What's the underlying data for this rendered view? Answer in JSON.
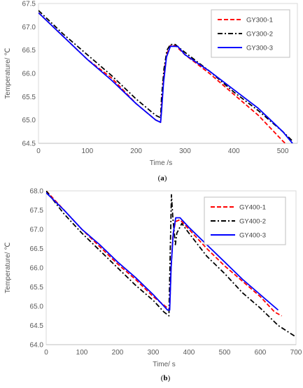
{
  "chart_data": [
    {
      "type": "line",
      "caption_letter": "a",
      "xlabel": "Time /s",
      "ylabel": "Temperature/ ℃",
      "xlim": [
        0,
        530
      ],
      "ylim": [
        64.5,
        67.5
      ],
      "xticks": [
        "0",
        "100",
        "200",
        "300",
        "400",
        "500"
      ],
      "yticks": [
        "64.5",
        "65.0",
        "65.5",
        "66.0",
        "66.5",
        "67.0",
        "67.5"
      ],
      "legend_position": "top-right",
      "series": [
        {
          "name": "GY300-1",
          "color": "#ff0000",
          "dash": "dashed",
          "points": [
            [
              0,
              67.3
            ],
            [
              50,
              66.8
            ],
            [
              100,
              66.3
            ],
            [
              150,
              65.9
            ],
            [
              200,
              65.35
            ],
            [
              240,
              65.0
            ],
            [
              250,
              64.95
            ],
            [
              252,
              65.3
            ],
            [
              256,
              65.9
            ],
            [
              262,
              66.4
            ],
            [
              270,
              66.6
            ],
            [
              280,
              66.6
            ],
            [
              300,
              66.4
            ],
            [
              350,
              66.0
            ],
            [
              400,
              65.55
            ],
            [
              450,
              65.1
            ],
            [
              500,
              64.55
            ],
            [
              510,
              64.45
            ]
          ]
        },
        {
          "name": "GY300-2",
          "color": "#000000",
          "dash": "dashdot",
          "points": [
            [
              0,
              67.35
            ],
            [
              50,
              66.85
            ],
            [
              100,
              66.4
            ],
            [
              150,
              65.95
            ],
            [
              200,
              65.45
            ],
            [
              240,
              65.1
            ],
            [
              250,
              65.05
            ],
            [
              252,
              65.5
            ],
            [
              257,
              66.1
            ],
            [
              263,
              66.5
            ],
            [
              270,
              66.62
            ],
            [
              280,
              66.62
            ],
            [
              300,
              66.45
            ],
            [
              350,
              66.05
            ],
            [
              400,
              65.6
            ],
            [
              450,
              65.2
            ],
            [
              500,
              64.75
            ],
            [
              520,
              64.55
            ]
          ]
        },
        {
          "name": "GY300-3",
          "color": "#0000ff",
          "dash": "solid",
          "points": [
            [
              0,
              67.3
            ],
            [
              50,
              66.8
            ],
            [
              100,
              66.3
            ],
            [
              150,
              65.85
            ],
            [
              200,
              65.35
            ],
            [
              240,
              65.0
            ],
            [
              250,
              64.95
            ],
            [
              252,
              65.2
            ],
            [
              256,
              65.8
            ],
            [
              262,
              66.35
            ],
            [
              270,
              66.58
            ],
            [
              285,
              66.58
            ],
            [
              300,
              66.4
            ],
            [
              350,
              66.05
            ],
            [
              400,
              65.65
            ],
            [
              450,
              65.25
            ],
            [
              500,
              64.75
            ],
            [
              520,
              64.5
            ]
          ]
        }
      ]
    },
    {
      "type": "line",
      "caption_letter": "b",
      "xlabel": "Time/ s",
      "ylabel": "Temperature/ ℃",
      "xlim": [
        0,
        700
      ],
      "ylim": [
        64.0,
        68.0
      ],
      "xticks": [
        "0",
        "100",
        "200",
        "300",
        "400",
        "500",
        "600",
        "700"
      ],
      "yticks": [
        "64.0",
        "64.5",
        "65.0",
        "65.5",
        "66.0",
        "66.5",
        "67.0",
        "67.5",
        "68.0"
      ],
      "legend_position": "top-right",
      "series": [
        {
          "name": "GY400-1",
          "color": "#ff0000",
          "dash": "dashed",
          "points": [
            [
              0,
              68.0
            ],
            [
              50,
              67.5
            ],
            [
              100,
              67.0
            ],
            [
              150,
              66.55
            ],
            [
              200,
              66.1
            ],
            [
              250,
              65.7
            ],
            [
              300,
              65.25
            ],
            [
              340,
              64.95
            ],
            [
              346,
              64.95
            ],
            [
              350,
              66.0
            ],
            [
              355,
              66.8
            ],
            [
              362,
              67.2
            ],
            [
              375,
              67.25
            ],
            [
              400,
              67.0
            ],
            [
              450,
              66.5
            ],
            [
              500,
              66.05
            ],
            [
              550,
              65.65
            ],
            [
              600,
              65.25
            ],
            [
              640,
              64.85
            ],
            [
              660,
              64.75
            ]
          ]
        },
        {
          "name": "GY400-2",
          "color": "#000000",
          "dash": "dashdot",
          "points": [
            [
              0,
              68.0
            ],
            [
              50,
              67.4
            ],
            [
              100,
              66.9
            ],
            [
              150,
              66.45
            ],
            [
              200,
              66.0
            ],
            [
              250,
              65.55
            ],
            [
              300,
              65.15
            ],
            [
              330,
              64.85
            ],
            [
              344,
              64.75
            ],
            [
              348,
              66.6
            ],
            [
              351,
              67.9
            ],
            [
              355,
              67.3
            ],
            [
              362,
              66.6
            ],
            [
              366,
              66.9
            ],
            [
              380,
              67.15
            ],
            [
              400,
              66.9
            ],
            [
              450,
              66.3
            ],
            [
              500,
              65.85
            ],
            [
              550,
              65.35
            ],
            [
              600,
              64.95
            ],
            [
              650,
              64.5
            ],
            [
              700,
              64.2
            ]
          ]
        },
        {
          "name": "GY400-3",
          "color": "#0000ff",
          "dash": "solid",
          "points": [
            [
              0,
              67.95
            ],
            [
              50,
              67.5
            ],
            [
              100,
              67.0
            ],
            [
              150,
              66.6
            ],
            [
              200,
              66.15
            ],
            [
              250,
              65.75
            ],
            [
              300,
              65.3
            ],
            [
              340,
              64.9
            ],
            [
              346,
              64.9
            ],
            [
              350,
              66.0
            ],
            [
              356,
              66.9
            ],
            [
              363,
              67.3
            ],
            [
              375,
              67.3
            ],
            [
              400,
              67.05
            ],
            [
              450,
              66.6
            ],
            [
              500,
              66.15
            ],
            [
              550,
              65.7
            ],
            [
              600,
              65.3
            ],
            [
              650,
              64.9
            ]
          ]
        }
      ]
    }
  ]
}
